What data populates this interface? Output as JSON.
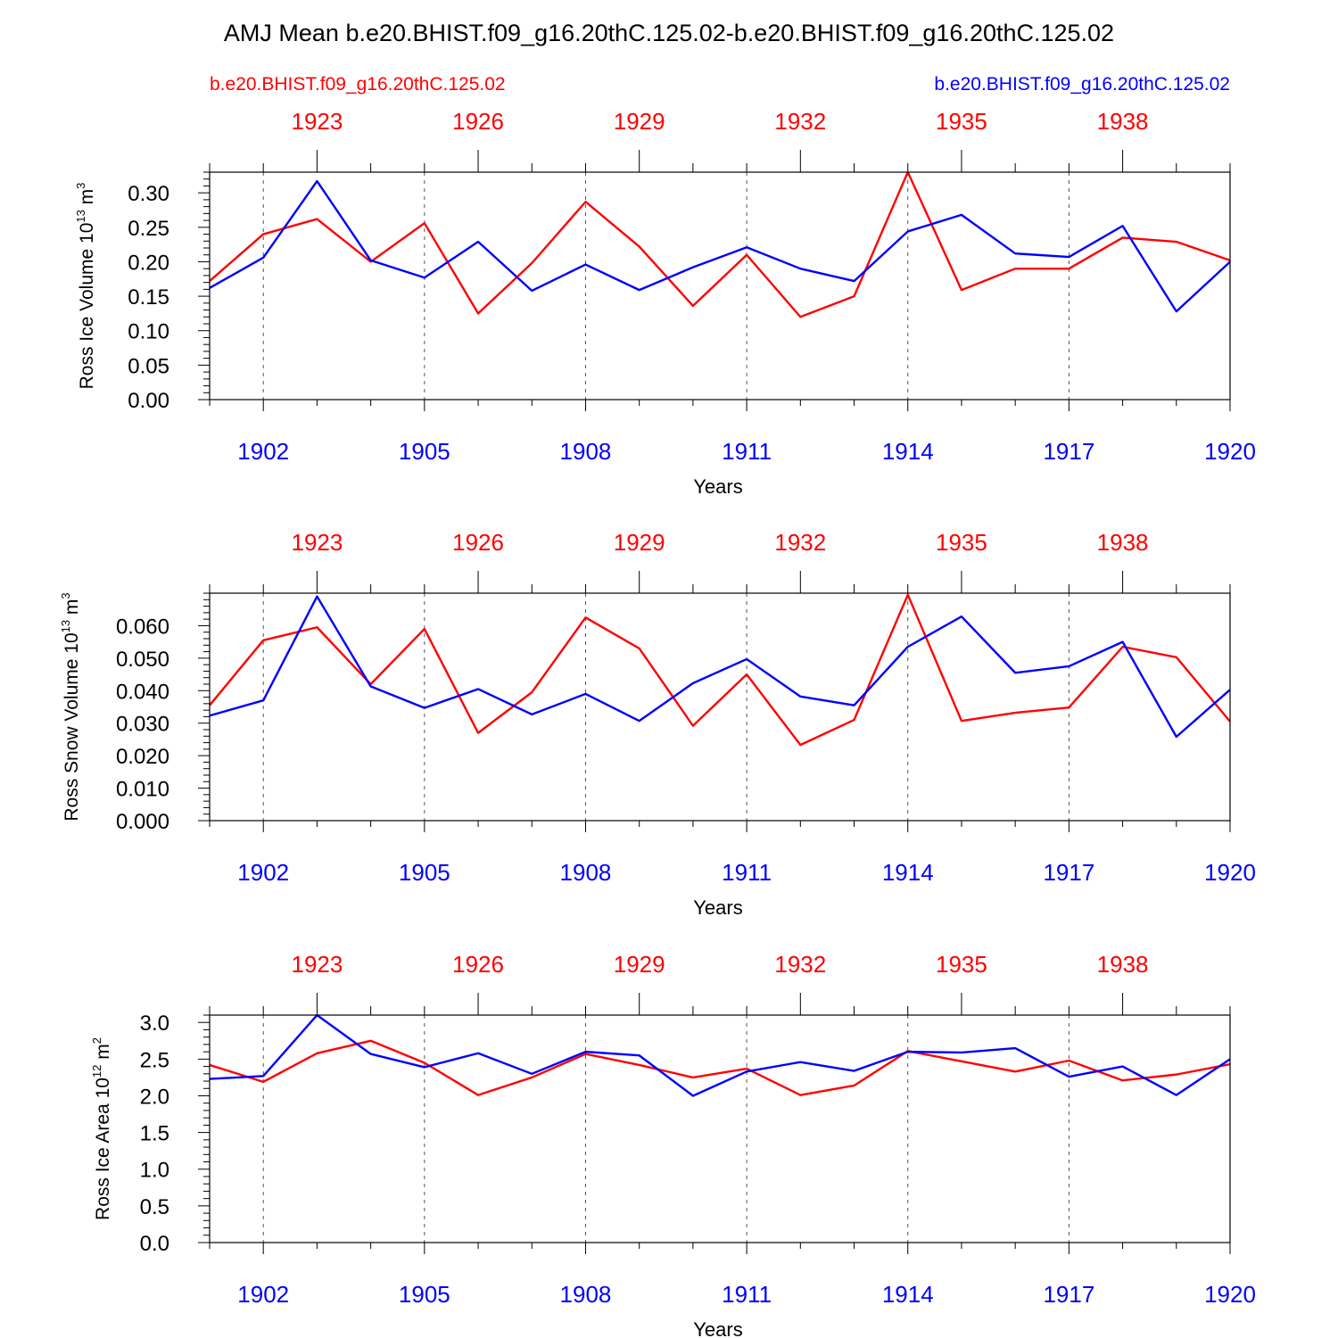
{
  "figure": {
    "title": "AMJ Mean b.e20.BHIST.f09_g16.20thC.125.02-b.e20.BHIST.f09_g16.20thC.125.02",
    "left_label": "b.e20.BHIST.f09_g16.20thC.125.02",
    "right_label": "b.e20.BHIST.f09_g16.20thC.125.02",
    "colors": {
      "case1": "#ff0000",
      "case2": "#0000ff",
      "axis": "#000000",
      "grid": "#555555"
    }
  },
  "chart_data": [
    {
      "type": "line",
      "ylabel_main": "Ross Ice Volume 10",
      "ylabel_exp": "13",
      "ylabel_unit": " m",
      "ylabel_unit_exp": "3",
      "xlabel": "Years",
      "ylim": [
        0,
        0.33
      ],
      "yticks": [
        0.0,
        0.05,
        0.1,
        0.15,
        0.2,
        0.25,
        0.3
      ],
      "ytick_labels": [
        "0.00",
        "0.05",
        "0.10",
        "0.15",
        "0.20",
        "0.25",
        "0.30"
      ],
      "yminor_step": 0.01,
      "xlim": [
        1901,
        1920
      ],
      "x": [
        1901,
        1902,
        1903,
        1904,
        1905,
        1906,
        1907,
        1908,
        1909,
        1910,
        1911,
        1912,
        1913,
        1914,
        1915,
        1916,
        1917,
        1918,
        1919,
        1920
      ],
      "xticks_bottom": [
        1902,
        1905,
        1908,
        1911,
        1914,
        1917,
        1920
      ],
      "xtick_labels_bottom": [
        "1902",
        "1905",
        "1908",
        "1911",
        "1914",
        "1917",
        "1920"
      ],
      "xticks_top_positions": [
        1903,
        1906,
        1909,
        1912,
        1915,
        1918
      ],
      "xtick_labels_top": [
        "1923",
        "1926",
        "1929",
        "1932",
        "1935",
        "1938"
      ],
      "series": [
        {
          "name": "b.e20.BHIST.f09_g16.20thC.125.02 (red)",
          "color": "#ff0000",
          "values": [
            0.172,
            0.24,
            0.262,
            0.2,
            0.256,
            0.125,
            0.198,
            0.287,
            0.222,
            0.136,
            0.21,
            0.12,
            0.15,
            0.33,
            0.159,
            0.19,
            0.19,
            0.235,
            0.229,
            0.202
          ]
        },
        {
          "name": "b.e20.BHIST.f09_g16.20thC.125.02 (blue)",
          "color": "#0000ff",
          "values": [
            0.162,
            0.206,
            0.317,
            0.202,
            0.177,
            0.229,
            0.158,
            0.196,
            0.159,
            0.192,
            0.221,
            0.19,
            0.172,
            0.244,
            0.268,
            0.212,
            0.207,
            0.252,
            0.128,
            0.2
          ]
        }
      ]
    },
    {
      "type": "line",
      "ylabel_main": "Ross Snow Volume 10",
      "ylabel_exp": "13",
      "ylabel_unit": " m",
      "ylabel_unit_exp": "3",
      "xlabel": "Years",
      "ylim": [
        0,
        0.07
      ],
      "yticks": [
        0.0,
        0.01,
        0.02,
        0.03,
        0.04,
        0.05,
        0.06
      ],
      "ytick_labels": [
        "0.000",
        "0.010",
        "0.020",
        "0.030",
        "0.040",
        "0.050",
        "0.060"
      ],
      "yminor_step": 0.002,
      "xlim": [
        1901,
        1920
      ],
      "x": [
        1901,
        1902,
        1903,
        1904,
        1905,
        1906,
        1907,
        1908,
        1909,
        1910,
        1911,
        1912,
        1913,
        1914,
        1915,
        1916,
        1917,
        1918,
        1919,
        1920
      ],
      "xticks_bottom": [
        1902,
        1905,
        1908,
        1911,
        1914,
        1917,
        1920
      ],
      "xtick_labels_bottom": [
        "1902",
        "1905",
        "1908",
        "1911",
        "1914",
        "1917",
        "1920"
      ],
      "xticks_top_positions": [
        1903,
        1906,
        1909,
        1912,
        1915,
        1918
      ],
      "xtick_labels_top": [
        "1923",
        "1926",
        "1929",
        "1932",
        "1935",
        "1938"
      ],
      "series": [
        {
          "name": "b.e20.BHIST.f09_g16.20thC.125.02 (red)",
          "color": "#ff0000",
          "values": [
            0.0355,
            0.0555,
            0.0595,
            0.042,
            0.059,
            0.027,
            0.0395,
            0.0625,
            0.053,
            0.0292,
            0.045,
            0.0233,
            0.031,
            0.0695,
            0.0307,
            0.0332,
            0.0348,
            0.0535,
            0.0503,
            0.0305
          ]
        },
        {
          "name": "b.e20.BHIST.f09_g16.20thC.125.02 (blue)",
          "color": "#0000ff",
          "values": [
            0.0323,
            0.037,
            0.069,
            0.0413,
            0.0347,
            0.0405,
            0.0327,
            0.039,
            0.0307,
            0.0423,
            0.0497,
            0.0382,
            0.0355,
            0.0535,
            0.0628,
            0.0455,
            0.0475,
            0.055,
            0.0258,
            0.0403
          ]
        }
      ]
    },
    {
      "type": "line",
      "ylabel_main": "Ross Ice Area 10",
      "ylabel_exp": "12",
      "ylabel_unit": " m",
      "ylabel_unit_exp": "2",
      "xlabel": "Years",
      "ylim": [
        0,
        3.1
      ],
      "yticks": [
        0.0,
        0.5,
        1.0,
        1.5,
        2.0,
        2.5,
        3.0
      ],
      "ytick_labels": [
        "0.0",
        "0.5",
        "1.0",
        "1.5",
        "2.0",
        "2.5",
        "3.0"
      ],
      "yminor_step": 0.1,
      "xlim": [
        1901,
        1920
      ],
      "x": [
        1901,
        1902,
        1903,
        1904,
        1905,
        1906,
        1907,
        1908,
        1909,
        1910,
        1911,
        1912,
        1913,
        1914,
        1915,
        1916,
        1917,
        1918,
        1919,
        1920
      ],
      "xticks_bottom": [
        1902,
        1905,
        1908,
        1911,
        1914,
        1917,
        1920
      ],
      "xtick_labels_bottom": [
        "1902",
        "1905",
        "1908",
        "1911",
        "1914",
        "1917",
        "1920"
      ],
      "xticks_top_positions": [
        1903,
        1906,
        1909,
        1912,
        1915,
        1918
      ],
      "xtick_labels_top": [
        "1923",
        "1926",
        "1929",
        "1932",
        "1935",
        "1938"
      ],
      "series": [
        {
          "name": "b.e20.BHIST.f09_g16.20thC.125.02 (red)",
          "color": "#ff0000",
          "values": [
            2.42,
            2.19,
            2.58,
            2.75,
            2.45,
            2.01,
            2.25,
            2.57,
            2.42,
            2.25,
            2.37,
            2.01,
            2.14,
            2.61,
            2.47,
            2.33,
            2.48,
            2.21,
            2.29,
            2.43
          ]
        },
        {
          "name": "b.e20.BHIST.f09_g16.20thC.125.02 (blue)",
          "color": "#0000ff",
          "values": [
            2.23,
            2.27,
            3.1,
            2.57,
            2.39,
            2.58,
            2.3,
            2.6,
            2.55,
            2.0,
            2.33,
            2.46,
            2.34,
            2.6,
            2.59,
            2.65,
            2.26,
            2.4,
            2.01,
            2.5
          ]
        }
      ]
    }
  ]
}
